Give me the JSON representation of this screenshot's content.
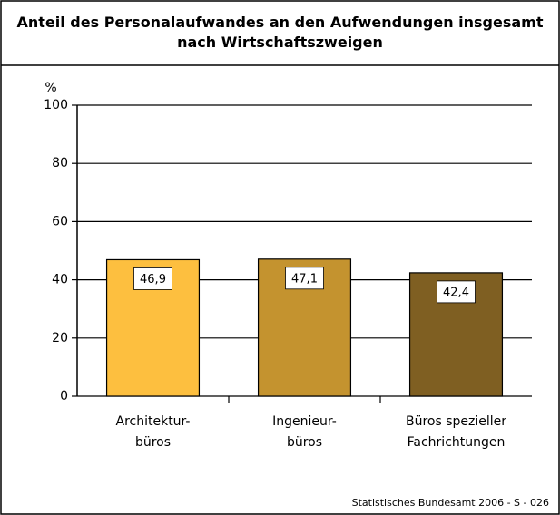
{
  "chart_data": {
    "type": "bar",
    "title": "Anteil des Personalaufwandes an den Aufwendungen insgesamt\nnach Wirtschaftszweigen",
    "y_label": "%",
    "categories": [
      "Architektur-\nbüros",
      "Ingenieur-\nbüros",
      "Büros spezieller\nFachrichtungen"
    ],
    "values": [
      46.9,
      47.1,
      42.4
    ],
    "value_labels": [
      "46,9",
      "47,1",
      "42,4"
    ],
    "colors": [
      "#fdbf3f",
      "#c4932f",
      "#7f5f22"
    ],
    "ylim": [
      0,
      100
    ],
    "yticks": [
      0,
      20,
      40,
      60,
      80,
      100
    ],
    "grid": true,
    "source": "Statistisches Bundesamt 2006 - S - 026"
  }
}
